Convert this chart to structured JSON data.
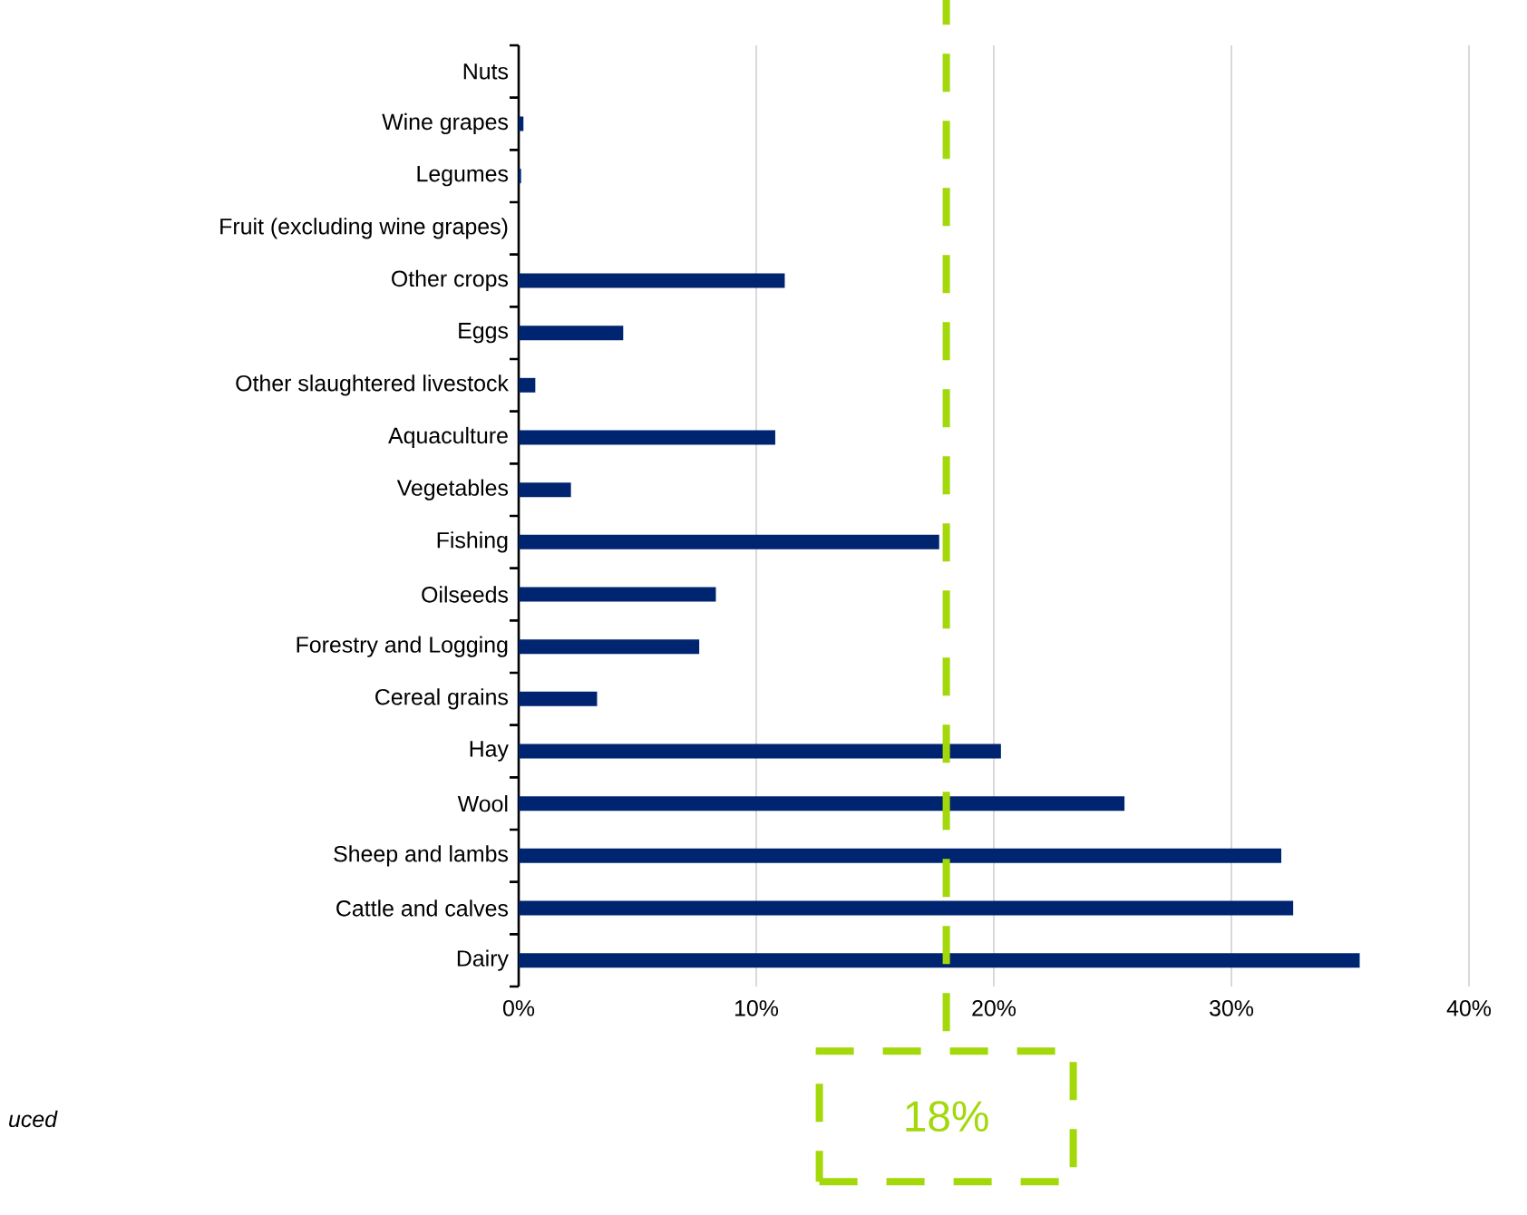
{
  "chart_data": {
    "type": "bar",
    "orientation": "horizontal",
    "categories": [
      "Nuts",
      "Wine grapes",
      "Legumes",
      "Fruit (excluding wine grapes)",
      "Other crops",
      "Eggs",
      "Other slaughtered livestock",
      "Aquaculture",
      "Vegetables",
      "Fishing",
      "Oilseeds",
      "Forestry and Logging",
      "Cereal grains",
      "Hay",
      "Wool",
      "Sheep and lambs",
      "Cattle and calves",
      "Dairy"
    ],
    "values": [
      0,
      0.2,
      0.1,
      0,
      11.2,
      4.4,
      0.7,
      10.8,
      2.2,
      17.7,
      8.3,
      7.6,
      3.3,
      20.3,
      25.5,
      32.1,
      32.6,
      35.4
    ],
    "color": "#002570",
    "xlim": [
      0,
      40
    ],
    "xticks": [
      {
        "value": 0,
        "label": "0%"
      },
      {
        "value": 10,
        "label": "10%"
      },
      {
        "value": 20,
        "label": "20%"
      },
      {
        "value": 30,
        "label": "30%"
      },
      {
        "value": 40,
        "label": "40%"
      }
    ],
    "grid": "x",
    "ref_lines": [
      {
        "axis": "x",
        "value": 18,
        "label": "18%",
        "color": "#a3d80a",
        "line_style": "dashed"
      }
    ],
    "annotations": [
      "uced"
    ]
  }
}
